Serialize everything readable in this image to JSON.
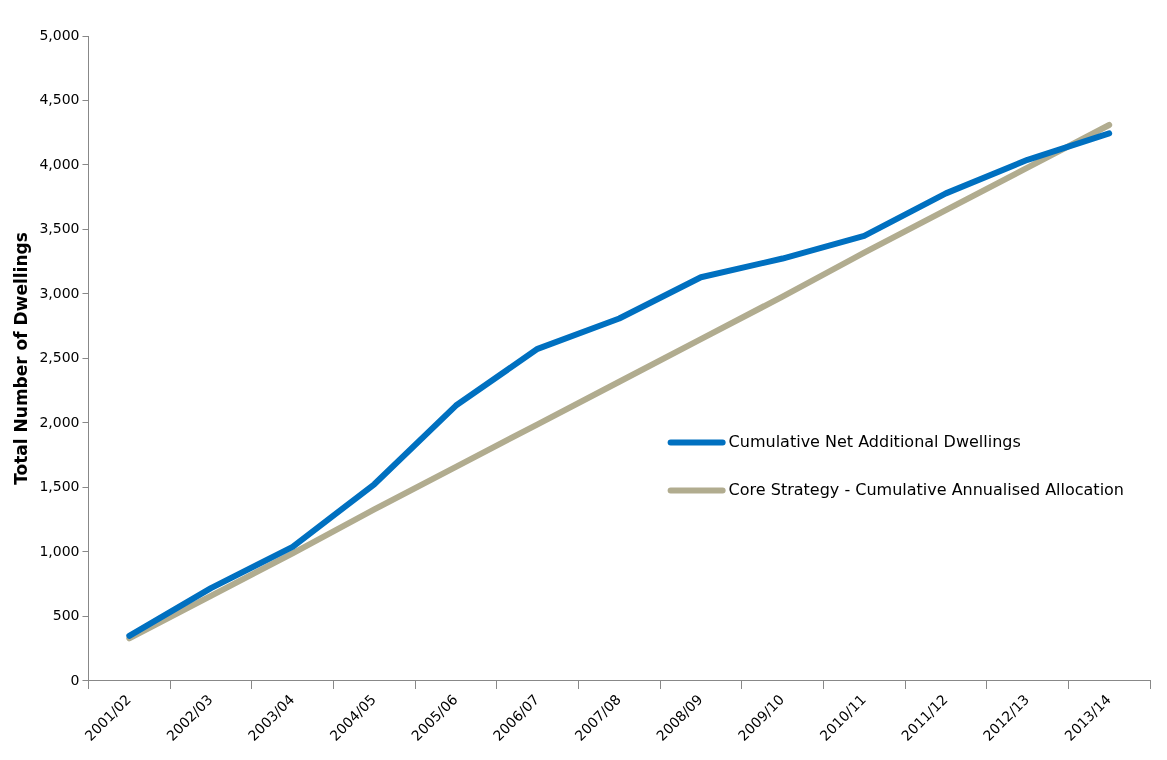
{
  "chart_data": {
    "type": "line",
    "ylabel": "Total Number of Dwellings",
    "categories": [
      "2001/02",
      "2002/03",
      "2003/04",
      "2004/05",
      "2005/06",
      "2006/07",
      "2007/08",
      "2008/09",
      "2009/10",
      "2010/11",
      "2011/12",
      "2012/13",
      "2013/14"
    ],
    "series": [
      {
        "name": "Cumulative Net Additional Dwellings",
        "color": "#0070c0",
        "values": [
          350,
          720,
          1040,
          1525,
          2135,
          2575,
          2810,
          3130,
          3275,
          3450,
          3780,
          4040,
          4245
        ]
      },
      {
        "name": "Core Strategy - Cumulative Annualised Allocation",
        "color": "#b1ac8f",
        "values": [
          330,
          660,
          990,
          1330,
          1660,
          1990,
          2320,
          2650,
          2980,
          3320,
          3650,
          3980,
          4310
        ]
      }
    ],
    "ylim": [
      0,
      5000
    ],
    "yticks": [
      0,
      500,
      {
        "value": 1000,
        "label": "1,000"
      },
      {
        "value": 1500,
        "label": "1,500"
      },
      {
        "value": 2000,
        "label": "2,000"
      },
      {
        "value": 2500,
        "label": "2,500"
      },
      {
        "value": 3000,
        "label": "3,000"
      },
      {
        "value": 3500,
        "label": "3,500"
      },
      {
        "value": 4000,
        "label": "4,000"
      },
      {
        "value": 4500,
        "label": "4,500"
      },
      {
        "value": 5000,
        "label": "5,000"
      }
    ],
    "grid": false,
    "legend": "right",
    "marker": "none",
    "line_style": "solid"
  }
}
